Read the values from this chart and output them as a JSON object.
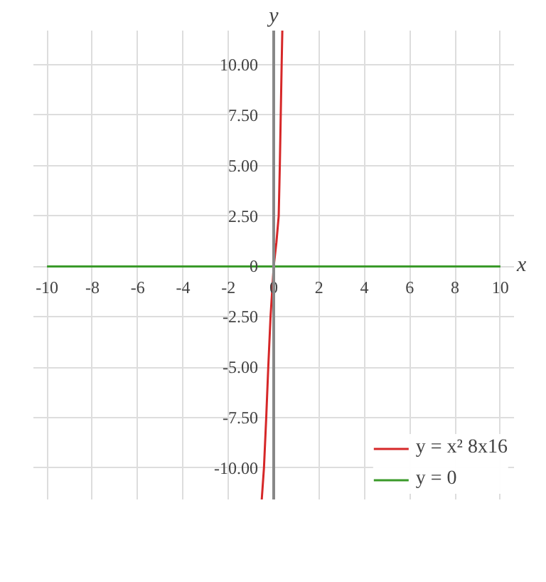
{
  "chart_data": {
    "type": "line",
    "xlabel": "x",
    "ylabel": "y",
    "xlim": [
      -10,
      10
    ],
    "ylim": [
      -11.6,
      11.7
    ],
    "xticks": [
      -10,
      -8,
      -6,
      -4,
      -2,
      0,
      2,
      4,
      6,
      8,
      10
    ],
    "yticks": [
      {
        "value": -10,
        "label": "-10.00"
      },
      {
        "value": -7.5,
        "label": "-7.50"
      },
      {
        "value": -5,
        "label": "-5.00"
      },
      {
        "value": -2.5,
        "label": "-2.50"
      },
      0,
      {
        "value": 2.5,
        "label": "2.50"
      },
      {
        "value": 5,
        "label": "5.00"
      },
      {
        "value": 7.5,
        "label": "7.50"
      },
      {
        "value": 10,
        "label": "10.00"
      }
    ],
    "grid": true,
    "legend": "bottom",
    "series": [
      {
        "name": "y = x² 8x16",
        "color": "#d62728",
        "x": [
          -0.53,
          -0.43,
          -0.33,
          -0.24,
          -0.14,
          0,
          0.12,
          0.22,
          0.27,
          0.31,
          0.35,
          0.38
        ],
        "values": [
          -11.6,
          -10,
          -7.5,
          -5,
          -2.5,
          0,
          1.2,
          2.5,
          5,
          7.5,
          10,
          11.7
        ]
      },
      {
        "name": "y = 0",
        "color": "#3a9a2a",
        "x": [
          -10,
          10
        ],
        "values": [
          0,
          0
        ]
      }
    ]
  }
}
